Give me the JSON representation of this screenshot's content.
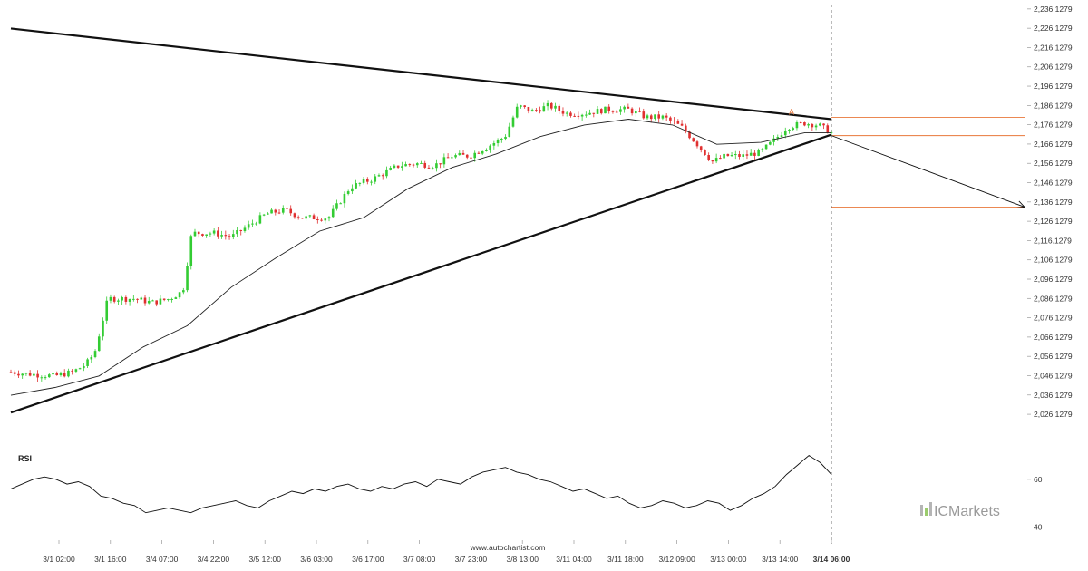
{
  "chart_data": {
    "type": "candlestick",
    "price_axis": {
      "ticks": [
        "2,236.1279",
        "2,226.1279",
        "2,216.1279",
        "2,206.1279",
        "2,196.1279",
        "2,186.1279",
        "2,176.1279",
        "2,166.1279",
        "2,156.1279",
        "2,146.1279",
        "2,136.1279",
        "2,126.1279",
        "2,116.1279",
        "2,106.1279",
        "2,096.1279",
        "2,086.1279",
        "2,076.1279",
        "2,066.1279",
        "2,056.1279",
        "2,046.1279",
        "2,036.1279",
        "2,026.1279"
      ],
      "range": [
        2021,
        2237
      ]
    },
    "time_axis": {
      "ticks": [
        "3/1 02:00",
        "3/1 16:00",
        "3/4 07:00",
        "3/4 22:00",
        "3/5 12:00",
        "3/6 03:00",
        "3/6 17:00",
        "3/7 08:00",
        "3/7 23:00",
        "3/8 13:00",
        "3/11 04:00",
        "3/11 18:00",
        "3/12 09:00",
        "3/13 00:00",
        "3/13 14:00",
        "3/14 06:00"
      ],
      "current_label": "3/14 06:00"
    },
    "price_path": [
      [
        0,
        2048
      ],
      [
        0.02,
        2047
      ],
      [
        0.05,
        2046
      ],
      [
        0.07,
        2048
      ],
      [
        0.085,
        2052
      ],
      [
        0.095,
        2058
      ],
      [
        0.11,
        2086
      ],
      [
        0.14,
        2086
      ],
      [
        0.16,
        2084
      ],
      [
        0.18,
        2086
      ],
      [
        0.195,
        2090
      ],
      [
        0.205,
        2120
      ],
      [
        0.23,
        2120
      ],
      [
        0.25,
        2118
      ],
      [
        0.27,
        2124
      ],
      [
        0.29,
        2130
      ],
      [
        0.31,
        2132
      ],
      [
        0.33,
        2128
      ],
      [
        0.36,
        2128
      ],
      [
        0.385,
        2144
      ],
      [
        0.41,
        2148
      ],
      [
        0.44,
        2155
      ],
      [
        0.46,
        2156
      ],
      [
        0.48,
        2155
      ],
      [
        0.5,
        2160
      ],
      [
        0.52,
        2160
      ],
      [
        0.545,
        2166
      ],
      [
        0.56,
        2170
      ],
      [
        0.575,
        2186
      ],
      [
        0.59,
        2183
      ],
      [
        0.61,
        2186
      ],
      [
        0.63,
        2182
      ],
      [
        0.65,
        2182
      ],
      [
        0.675,
        2184
      ],
      [
        0.7,
        2184
      ],
      [
        0.72,
        2180
      ],
      [
        0.74,
        2180
      ],
      [
        0.76,
        2175
      ],
      [
        0.78,
        2165
      ],
      [
        0.795,
        2157
      ],
      [
        0.81,
        2160
      ],
      [
        0.83,
        2160
      ],
      [
        0.85,
        2162
      ],
      [
        0.865,
        2168
      ],
      [
        0.88,
        2175
      ],
      [
        0.9,
        2177
      ],
      [
        0.915,
        2176
      ],
      [
        0.93,
        2172
      ]
    ],
    "moving_average_path": [
      [
        0,
        2036
      ],
      [
        0.05,
        2040
      ],
      [
        0.1,
        2046
      ],
      [
        0.15,
        2061
      ],
      [
        0.2,
        2072
      ],
      [
        0.25,
        2092
      ],
      [
        0.3,
        2107
      ],
      [
        0.35,
        2121
      ],
      [
        0.4,
        2128
      ],
      [
        0.45,
        2143
      ],
      [
        0.5,
        2154
      ],
      [
        0.55,
        2161
      ],
      [
        0.6,
        2170
      ],
      [
        0.65,
        2176
      ],
      [
        0.7,
        2179
      ],
      [
        0.75,
        2176
      ],
      [
        0.8,
        2166
      ],
      [
        0.85,
        2167
      ],
      [
        0.9,
        2172
      ],
      [
        0.93,
        2172
      ]
    ],
    "triangle": {
      "upper_line": [
        [
          0,
          2226
        ],
        [
          0.93,
          2179
        ]
      ],
      "lower_line": [
        [
          0,
          2027
        ],
        [
          0.93,
          2171
        ]
      ]
    },
    "levels": [
      2180,
      2170.5,
      2133.5
    ],
    "pattern_point_label": "A",
    "projection": {
      "from": [
        0.93,
        2170.5
      ],
      "to": [
        1,
        2133.5
      ]
    },
    "rsi": {
      "label": "RSI",
      "ticks": [
        "60",
        "40"
      ],
      "range": [
        36,
        74
      ],
      "values": [
        56,
        58,
        60,
        61,
        60,
        58,
        59,
        57,
        53,
        52,
        50,
        49,
        46,
        47,
        48,
        47,
        46,
        48,
        49,
        50,
        51,
        49,
        48,
        51,
        53,
        55,
        54,
        56,
        55,
        57,
        58,
        56,
        55,
        57,
        56,
        58,
        59,
        57,
        60,
        59,
        58,
        61,
        63,
        64,
        65,
        63,
        62,
        60,
        59,
        57,
        55,
        56,
        54,
        52,
        53,
        50,
        48,
        49,
        51,
        50,
        48,
        49,
        51,
        50,
        47,
        49,
        52,
        54,
        57,
        62,
        66,
        70,
        67,
        62
      ]
    },
    "colors": {
      "up": "#33cc33",
      "down": "#e03030",
      "accent": "#e8773a"
    }
  },
  "footer": {
    "watermark": "www.autochartist.com"
  },
  "brand": {
    "name": "ICMarkets"
  }
}
